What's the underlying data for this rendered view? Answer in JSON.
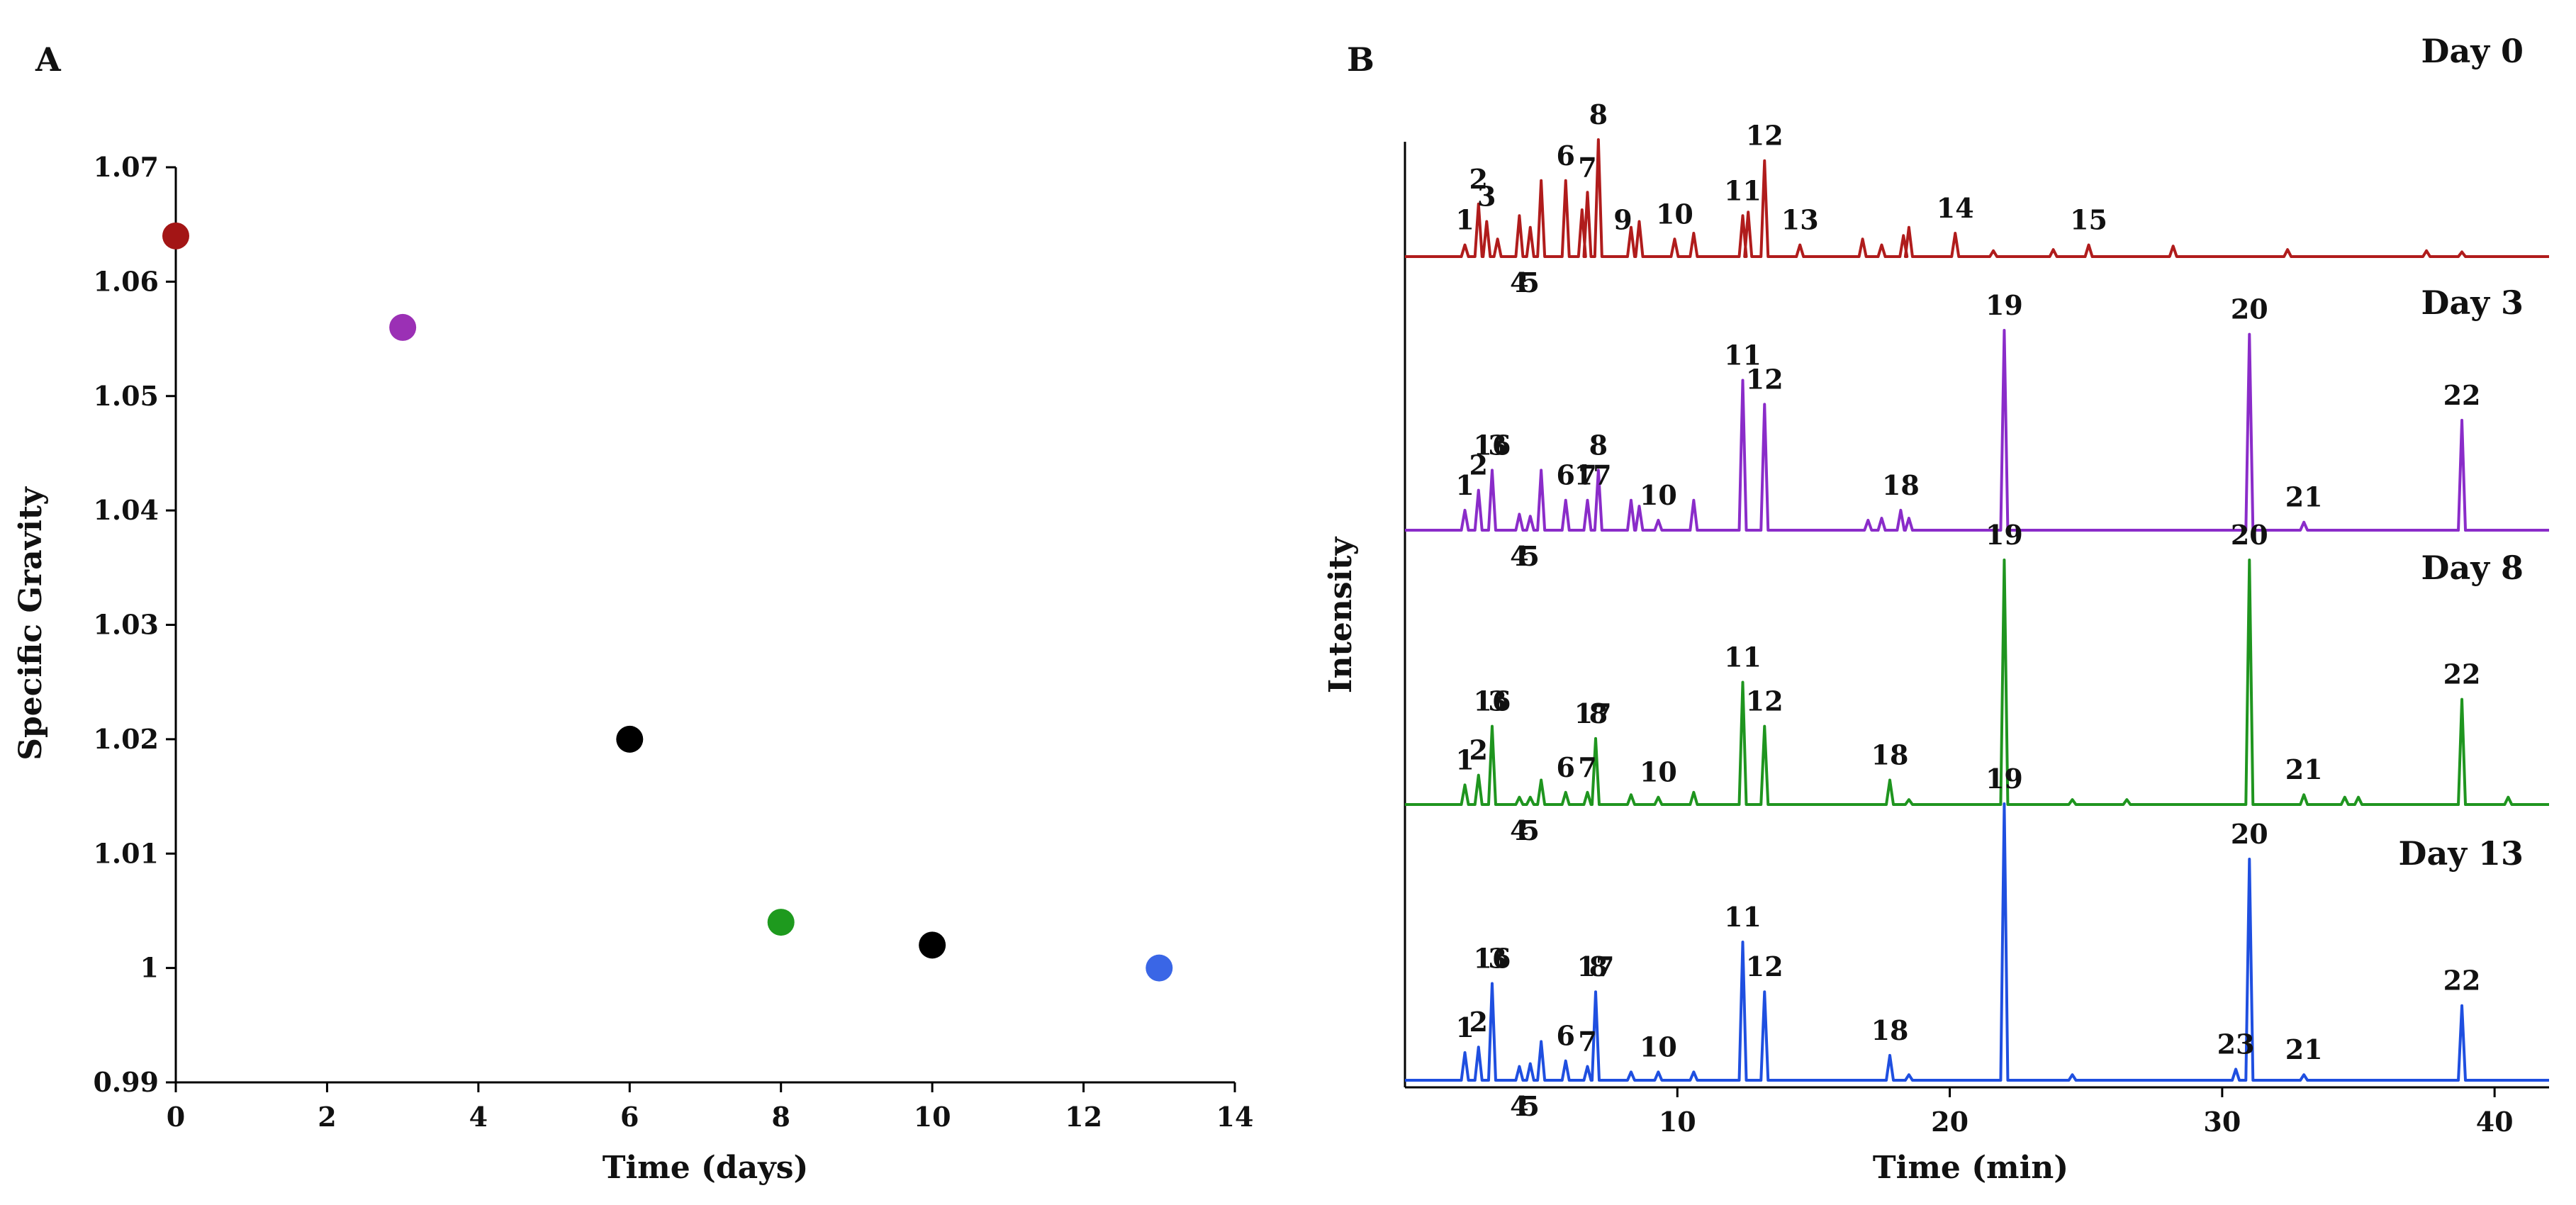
{
  "chart_data": [
    {
      "type": "scatter",
      "panel_label": "A",
      "title": "",
      "xlabel": "Time (days)",
      "ylabel": "Specific Gravity",
      "xlim": [
        0,
        14
      ],
      "ylim": [
        0.99,
        1.07
      ],
      "xticks": [
        0,
        2,
        4,
        6,
        8,
        10,
        12,
        14
      ],
      "yticks": [
        0.99,
        1,
        1.01,
        1.02,
        1.03,
        1.04,
        1.05,
        1.06,
        1.07
      ],
      "ytick_labels": [
        "0.99",
        "1",
        "1.01",
        "1.02",
        "1.03",
        "1.04",
        "1.05",
        "1.06",
        "1.07"
      ],
      "grid": false,
      "points": [
        {
          "x": 0,
          "y": 1.064,
          "color": "#a31515"
        },
        {
          "x": 3,
          "y": 1.056,
          "color": "#9b30b5"
        },
        {
          "x": 6,
          "y": 1.02,
          "color": "#000000"
        },
        {
          "x": 8,
          "y": 1.004,
          "color": "#1e9a1e"
        },
        {
          "x": 10,
          "y": 1.002,
          "color": "#000000"
        },
        {
          "x": 13,
          "y": 1.0,
          "color": "#3a66e6"
        }
      ]
    },
    {
      "type": "line",
      "panel_label": "B",
      "xlabel": "Time (min)",
      "ylabel": "Intensity",
      "xlim": [
        0,
        42
      ],
      "xticks": [
        10,
        20,
        30,
        40
      ],
      "grid": false,
      "series": [
        {
          "name": "Day 0",
          "color": "#b01c1c",
          "peaks": [
            [
              2.2,
              0.1
            ],
            [
              2.7,
              0.45
            ],
            [
              3.0,
              0.3
            ],
            [
              3.4,
              0.15
            ],
            [
              4.2,
              0.35
            ],
            [
              4.6,
              0.25
            ],
            [
              5.0,
              0.65
            ],
            [
              5.9,
              0.65
            ],
            [
              6.5,
              0.4
            ],
            [
              6.7,
              0.55
            ],
            [
              7.1,
              1.0
            ],
            [
              8.3,
              0.25
            ],
            [
              8.6,
              0.3
            ],
            [
              9.9,
              0.15
            ],
            [
              10.6,
              0.2
            ],
            [
              12.4,
              0.35
            ],
            [
              12.6,
              0.38
            ],
            [
              13.2,
              0.82
            ],
            [
              14.5,
              0.1
            ],
            [
              16.8,
              0.15
            ],
            [
              17.5,
              0.1
            ],
            [
              18.3,
              0.18
            ],
            [
              18.5,
              0.25
            ],
            [
              20.2,
              0.2
            ],
            [
              21.6,
              0.05
            ],
            [
              23.8,
              0.06
            ],
            [
              25.1,
              0.1
            ],
            [
              28.2,
              0.09
            ],
            [
              32.4,
              0.06
            ],
            [
              37.5,
              0.05
            ],
            [
              38.8,
              0.04
            ]
          ],
          "peak_labels": [
            {
              "label": "1",
              "t": 2.2,
              "h": 0.1
            },
            {
              "label": "2",
              "t": 2.7,
              "h": 0.45
            },
            {
              "label": "3",
              "t": 3.0,
              "h": 0.3
            },
            {
              "label": "4",
              "t": 4.2,
              "h": 0.35
            },
            {
              "label": "5",
              "t": 4.6,
              "h": 0.25
            },
            {
              "label": "6",
              "t": 5.9,
              "h": 0.65
            },
            {
              "label": "7",
              "t": 6.7,
              "h": 0.55
            },
            {
              "label": "8",
              "t": 7.1,
              "h": 1.0
            },
            {
              "label": "9",
              "t": 8.0,
              "h": 0.1
            },
            {
              "label": "10",
              "t": 9.9,
              "h": 0.15
            },
            {
              "label": "11",
              "t": 12.4,
              "h": 0.35
            },
            {
              "label": "12",
              "t": 13.2,
              "h": 0.82
            },
            {
              "label": "13",
              "t": 14.5,
              "h": 0.1
            },
            {
              "label": "14",
              "t": 20.2,
              "h": 0.2
            },
            {
              "label": "15",
              "t": 25.1,
              "h": 0.1
            }
          ]
        },
        {
          "name": "Day 3",
          "color": "#8a2cc9",
          "peaks": [
            [
              2.2,
              0.1
            ],
            [
              2.7,
              0.2
            ],
            [
              3.2,
              0.3
            ],
            [
              4.2,
              0.08
            ],
            [
              4.6,
              0.07
            ],
            [
              5.0,
              0.3
            ],
            [
              5.9,
              0.15
            ],
            [
              6.7,
              0.15
            ],
            [
              7.1,
              0.3
            ],
            [
              8.3,
              0.15
            ],
            [
              8.6,
              0.12
            ],
            [
              9.3,
              0.05
            ],
            [
              10.6,
              0.15
            ],
            [
              12.4,
              0.75
            ],
            [
              13.2,
              0.63
            ],
            [
              17.0,
              0.05
            ],
            [
              17.5,
              0.06
            ],
            [
              18.2,
              0.1
            ],
            [
              18.5,
              0.06
            ],
            [
              22.0,
              1.0
            ],
            [
              31.0,
              0.98
            ],
            [
              33.0,
              0.04
            ],
            [
              38.8,
              0.55
            ]
          ],
          "peak_labels": [
            {
              "label": "1",
              "t": 2.2,
              "h": 0.1
            },
            {
              "label": "2",
              "t": 2.7,
              "h": 0.2
            },
            {
              "label": "16",
              "t": 3.2,
              "h": 0.3
            },
            {
              "label": "3",
              "t": 3.4,
              "h": 0.3
            },
            {
              "label": "4",
              "t": 4.2,
              "h": 0.08
            },
            {
              "label": "5",
              "t": 4.6,
              "h": 0.07
            },
            {
              "label": "6",
              "t": 5.9,
              "h": 0.15
            },
            {
              "label": "7",
              "t": 6.7,
              "h": 0.15
            },
            {
              "label": "17",
              "t": 6.9,
              "h": 0.15
            },
            {
              "label": "8",
              "t": 7.1,
              "h": 0.3
            },
            {
              "label": "10",
              "t": 9.3,
              "h": 0.05
            },
            {
              "label": "11",
              "t": 12.4,
              "h": 0.75
            },
            {
              "label": "12",
              "t": 13.2,
              "h": 0.63
            },
            {
              "label": "18",
              "t": 18.2,
              "h": 0.1
            },
            {
              "label": "19",
              "t": 22.0,
              "h": 1.0
            },
            {
              "label": "20",
              "t": 31.0,
              "h": 0.98
            },
            {
              "label": "21",
              "t": 33.0,
              "h": 0.04
            },
            {
              "label": "22",
              "t": 38.8,
              "h": 0.55
            }
          ]
        },
        {
          "name": "Day 8",
          "color": "#1f951f",
          "peaks": [
            [
              2.2,
              0.08
            ],
            [
              2.7,
              0.12
            ],
            [
              3.2,
              0.32
            ],
            [
              4.2,
              0.03
            ],
            [
              4.6,
              0.03
            ],
            [
              5.0,
              0.1
            ],
            [
              5.9,
              0.05
            ],
            [
              6.7,
              0.05
            ],
            [
              7.0,
              0.27
            ],
            [
              8.3,
              0.04
            ],
            [
              9.3,
              0.03
            ],
            [
              10.6,
              0.05
            ],
            [
              12.4,
              0.5
            ],
            [
              13.2,
              0.32
            ],
            [
              17.8,
              0.1
            ],
            [
              18.5,
              0.02
            ],
            [
              22.0,
              1.0
            ],
            [
              24.5,
              0.02
            ],
            [
              26.5,
              0.02
            ],
            [
              31.0,
              1.0
            ],
            [
              33.0,
              0.04
            ],
            [
              34.5,
              0.03
            ],
            [
              35.0,
              0.03
            ],
            [
              38.8,
              0.43
            ],
            [
              40.5,
              0.03
            ]
          ],
          "peak_labels": [
            {
              "label": "1",
              "t": 2.2,
              "h": 0.08
            },
            {
              "label": "2",
              "t": 2.7,
              "h": 0.12
            },
            {
              "label": "16",
              "t": 3.2,
              "h": 0.32
            },
            {
              "label": "3",
              "t": 3.4,
              "h": 0.32
            },
            {
              "label": "4",
              "t": 4.2,
              "h": 0.03
            },
            {
              "label": "5",
              "t": 4.6,
              "h": 0.03
            },
            {
              "label": "6",
              "t": 5.9,
              "h": 0.05
            },
            {
              "label": "7",
              "t": 6.7,
              "h": 0.05
            },
            {
              "label": "17",
              "t": 6.9,
              "h": 0.27
            },
            {
              "label": "8",
              "t": 7.1,
              "h": 0.27
            },
            {
              "label": "10",
              "t": 9.3,
              "h": 0.03
            },
            {
              "label": "11",
              "t": 12.4,
              "h": 0.5
            },
            {
              "label": "12",
              "t": 13.2,
              "h": 0.32
            },
            {
              "label": "18",
              "t": 17.8,
              "h": 0.1
            },
            {
              "label": "19",
              "t": 22.0,
              "h": 1.0
            },
            {
              "label": "20",
              "t": 31.0,
              "h": 1.0
            },
            {
              "label": "21",
              "t": 33.0,
              "h": 0.04
            },
            {
              "label": "22",
              "t": 38.8,
              "h": 0.43
            }
          ]
        },
        {
          "name": "Day 13",
          "color": "#1f4fe0",
          "peaks": [
            [
              2.2,
              0.1
            ],
            [
              2.7,
              0.12
            ],
            [
              3.2,
              0.35
            ],
            [
              4.2,
              0.05
            ],
            [
              4.6,
              0.06
            ],
            [
              5.0,
              0.14
            ],
            [
              5.9,
              0.07
            ],
            [
              6.7,
              0.05
            ],
            [
              7.0,
              0.32
            ],
            [
              8.3,
              0.03
            ],
            [
              9.3,
              0.03
            ],
            [
              10.6,
              0.03
            ],
            [
              12.4,
              0.5
            ],
            [
              13.2,
              0.32
            ],
            [
              17.8,
              0.09
            ],
            [
              18.5,
              0.02
            ],
            [
              22.0,
              1.0
            ],
            [
              24.5,
              0.02
            ],
            [
              30.5,
              0.04
            ],
            [
              31.0,
              0.8
            ],
            [
              33.0,
              0.02
            ],
            [
              38.8,
              0.27
            ]
          ],
          "peak_labels": [
            {
              "label": "1",
              "t": 2.2,
              "h": 0.1
            },
            {
              "label": "2",
              "t": 2.7,
              "h": 0.12
            },
            {
              "label": "16",
              "t": 3.2,
              "h": 0.35
            },
            {
              "label": "3",
              "t": 3.4,
              "h": 0.35
            },
            {
              "label": "4",
              "t": 4.2,
              "h": 0.05
            },
            {
              "label": "5",
              "t": 4.6,
              "h": 0.06
            },
            {
              "label": "6",
              "t": 5.9,
              "h": 0.07
            },
            {
              "label": "7",
              "t": 6.7,
              "h": 0.05
            },
            {
              "label": "17",
              "t": 7.0,
              "h": 0.32
            },
            {
              "label": "8",
              "t": 7.1,
              "h": 0.32
            },
            {
              "label": "10",
              "t": 9.3,
              "h": 0.03
            },
            {
              "label": "11",
              "t": 12.4,
              "h": 0.5
            },
            {
              "label": "12",
              "t": 13.2,
              "h": 0.32
            },
            {
              "label": "18",
              "t": 17.8,
              "h": 0.09
            },
            {
              "label": "19",
              "t": 22.0,
              "h": 1.0
            },
            {
              "label": "23",
              "t": 30.5,
              "h": 0.04
            },
            {
              "label": "20",
              "t": 31.0,
              "h": 0.8
            },
            {
              "label": "21",
              "t": 33.0,
              "h": 0.02
            },
            {
              "label": "22",
              "t": 38.8,
              "h": 0.27
            }
          ]
        }
      ]
    }
  ]
}
